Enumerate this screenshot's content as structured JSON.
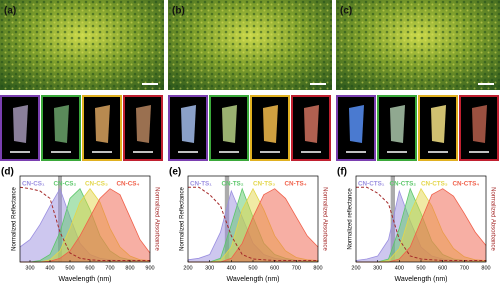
{
  "photos": {
    "labels": [
      "(a)",
      "(b)",
      "(c)"
    ]
  },
  "chart_data": [
    {
      "type": "area",
      "panel_label": "(d)",
      "xlabel": "Wavelength (nm)",
      "ylabel": "Normalized Reflectance",
      "y2label": "Normalized Absorbance",
      "x": [
        250,
        300,
        350,
        400,
        450,
        500,
        550,
        600,
        650,
        700,
        750,
        800,
        850,
        900
      ],
      "xlim": [
        250,
        900
      ],
      "xticks": [
        300,
        400,
        500,
        600,
        700,
        800,
        900
      ],
      "ylim": [
        0,
        1.15
      ],
      "y2lim": [
        0,
        1.15
      ],
      "highlight": [
        440,
        460
      ],
      "series": [
        {
          "name": "CN-CS₁",
          "color": "#9b8fe0",
          "values": [
            0.2,
            0.3,
            0.5,
            0.75,
            0.98,
            0.6,
            0.25,
            0.1,
            0.05,
            0.03,
            0.02,
            0.02,
            0.02,
            0.02
          ]
        },
        {
          "name": "CN-CS₂",
          "color": "#5cc76a",
          "values": [
            0,
            0,
            0.02,
            0.1,
            0.4,
            0.85,
            0.98,
            0.7,
            0.35,
            0.15,
            0.06,
            0.03,
            0.02,
            0.02
          ]
        },
        {
          "name": "CN-CS₃",
          "color": "#e3d64a",
          "values": [
            0,
            0,
            0,
            0.03,
            0.15,
            0.45,
            0.8,
            0.98,
            0.8,
            0.45,
            0.2,
            0.08,
            0.03,
            0.02
          ]
        },
        {
          "name": "CN-CS₄",
          "color": "#f0604a",
          "values": [
            0,
            0,
            0,
            0.01,
            0.05,
            0.15,
            0.35,
            0.6,
            0.85,
            0.98,
            0.9,
            0.6,
            0.3,
            0.12
          ]
        },
        {
          "color": "#a52a2a",
          "axis": "y2",
          "style": "dashed",
          "values": [
            1.0,
            0.98,
            0.95,
            0.85,
            0.4,
            0.12,
            0.05,
            0.03,
            0.02,
            0.02,
            0.02,
            0.02,
            0.02,
            0.02
          ]
        }
      ]
    },
    {
      "type": "area",
      "panel_label": "(e)",
      "xlabel": "Wavelength (nm)",
      "ylabel": "Normalized Reflectance",
      "y2label": "Normalized Absorbance",
      "x": [
        200,
        250,
        300,
        350,
        400,
        450,
        500,
        550,
        600,
        650,
        700,
        750,
        800
      ],
      "xlim": [
        200,
        800
      ],
      "xticks": [
        200,
        300,
        400,
        500,
        600,
        700,
        800
      ],
      "ylim": [
        0,
        1.15
      ],
      "y2lim": [
        0,
        1.15
      ],
      "highlight": [
        370,
        390
      ],
      "series": [
        {
          "name": "CN-TS₁",
          "color": "#9b8fe0",
          "values": [
            0.03,
            0.05,
            0.1,
            0.4,
            0.95,
            0.6,
            0.25,
            0.1,
            0.05,
            0.03,
            0.02,
            0.02,
            0.02
          ]
        },
        {
          "name": "CN-TS₂",
          "color": "#5cc76a",
          "values": [
            0,
            0,
            0,
            0.05,
            0.5,
            0.98,
            0.6,
            0.25,
            0.1,
            0.05,
            0.02,
            0.01,
            0.01
          ]
        },
        {
          "name": "CN-TS₃",
          "color": "#e3d64a",
          "values": [
            0,
            0,
            0,
            0.02,
            0.2,
            0.7,
            0.98,
            0.7,
            0.35,
            0.15,
            0.06,
            0.03,
            0.02
          ]
        },
        {
          "name": "CN-TS₄",
          "color": "#f0604a",
          "values": [
            0,
            0,
            0,
            0,
            0.05,
            0.25,
            0.6,
            0.9,
            0.98,
            0.85,
            0.6,
            0.35,
            0.2
          ]
        },
        {
          "color": "#a52a2a",
          "axis": "y2",
          "style": "dashed",
          "values": [
            1.0,
            1.0,
            0.9,
            0.75,
            0.35,
            0.1,
            0.04,
            0.03,
            0.02,
            0.02,
            0.02,
            0.02,
            0.02
          ]
        }
      ]
    },
    {
      "type": "area",
      "panel_label": "(f)",
      "xlabel": "Wavelength (nm)",
      "ylabel": "Normalized reflectance",
      "y2label": "Normalized Absorbance",
      "x": [
        200,
        250,
        300,
        350,
        400,
        450,
        500,
        550,
        600,
        650,
        700,
        750,
        800
      ],
      "xlim": [
        200,
        800
      ],
      "xticks": [
        200,
        300,
        400,
        500,
        600,
        700,
        800
      ],
      "ylim": [
        0,
        1.15
      ],
      "y2lim": [
        0,
        1.15
      ],
      "highlight": [
        360,
        380
      ],
      "series": [
        {
          "name": "CN-CTS₁",
          "color": "#9b8fe0",
          "values": [
            0.02,
            0.04,
            0.08,
            0.3,
            0.95,
            0.55,
            0.2,
            0.08,
            0.04,
            0.02,
            0.02,
            0.02,
            0.02
          ]
        },
        {
          "name": "CN-CTS₂",
          "color": "#5cc76a",
          "values": [
            0,
            0,
            0,
            0.04,
            0.45,
            0.98,
            0.65,
            0.28,
            0.1,
            0.04,
            0.02,
            0.01,
            0.01
          ]
        },
        {
          "name": "CN-CTS₃",
          "color": "#e3d64a",
          "values": [
            0,
            0,
            0,
            0.02,
            0.18,
            0.65,
            0.98,
            0.75,
            0.4,
            0.18,
            0.07,
            0.03,
            0.02
          ]
        },
        {
          "name": "CN-CTS₄",
          "color": "#f0604a",
          "values": [
            0,
            0,
            0,
            0,
            0.04,
            0.2,
            0.55,
            0.9,
            0.98,
            0.88,
            0.65,
            0.4,
            0.22
          ]
        },
        {
          "color": "#a52a2a",
          "axis": "y2",
          "style": "dashed",
          "values": [
            1.0,
            1.0,
            0.92,
            0.78,
            0.3,
            0.08,
            0.04,
            0.03,
            0.02,
            0.02,
            0.02,
            0.02,
            0.02
          ]
        }
      ]
    }
  ]
}
